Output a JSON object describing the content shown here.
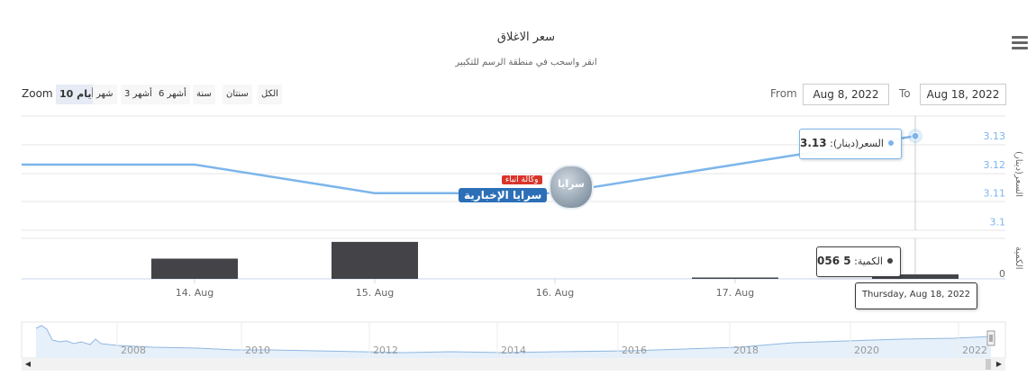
{
  "header": {
    "title": "سعر الاغلاق",
    "subtitle": "انقر واسحب في منطقة الرسم للتكبير"
  },
  "zoom": {
    "label": "Zoom",
    "buttons": [
      "10 أيام",
      "شهر",
      "3 أشهر",
      "6 أشهر",
      "سنة",
      "سنتان",
      "الكل"
    ],
    "active_index": 0
  },
  "range": {
    "from_label": "From",
    "from_value": "Aug 8, 2022",
    "to_label": "To",
    "to_value": "Aug 18, 2022"
  },
  "watermark": {
    "line1": "وكالة أنباء",
    "line2": "سرايا الإخبارية",
    "logo_text": "سرايا"
  },
  "colors": {
    "price_line": "#7cb5ec",
    "volume_bar": "#434348",
    "navigator_line": "#8fb8e0",
    "navigator_fill": "#e6f0fa"
  },
  "chart_data": [
    {
      "type": "line",
      "x": [
        "2022-08-13",
        "2022-08-14",
        "2022-08-15",
        "2022-08-16",
        "2022-08-17",
        "2022-08-18"
      ],
      "values": [
        3.12,
        3.12,
        3.11,
        3.11,
        3.12,
        3.13
      ],
      "ylabel": "السعر(دينار)",
      "yticks": [
        3.1,
        3.11,
        3.12,
        3.13
      ],
      "ylim": [
        3.1,
        3.13
      ],
      "tooltip": {
        "label": "السعر(دينار):",
        "value": "3.13"
      }
    },
    {
      "type": "bar",
      "x": [
        "2022-08-14",
        "2022-08-15",
        "2022-08-16",
        "2022-08-17",
        "2022-08-18"
      ],
      "values": [
        23000,
        42000,
        0,
        1200,
        5056
      ],
      "ylabel": "الكمية",
      "yticks": [
        0
      ],
      "tooltip": {
        "label": "الكمية:",
        "value": "5 056",
        "date": "Thursday, Aug 18, 2022"
      }
    }
  ],
  "xaxis": {
    "ticks": [
      "14. Aug",
      "15. Aug",
      "16. Aug",
      "17. Aug"
    ]
  },
  "navigator": {
    "years": [
      "2008",
      "2010",
      "2012",
      "2014",
      "2016",
      "2018",
      "2020",
      "2022"
    ],
    "scroll_left": "◀",
    "scroll_right": "▶"
  }
}
